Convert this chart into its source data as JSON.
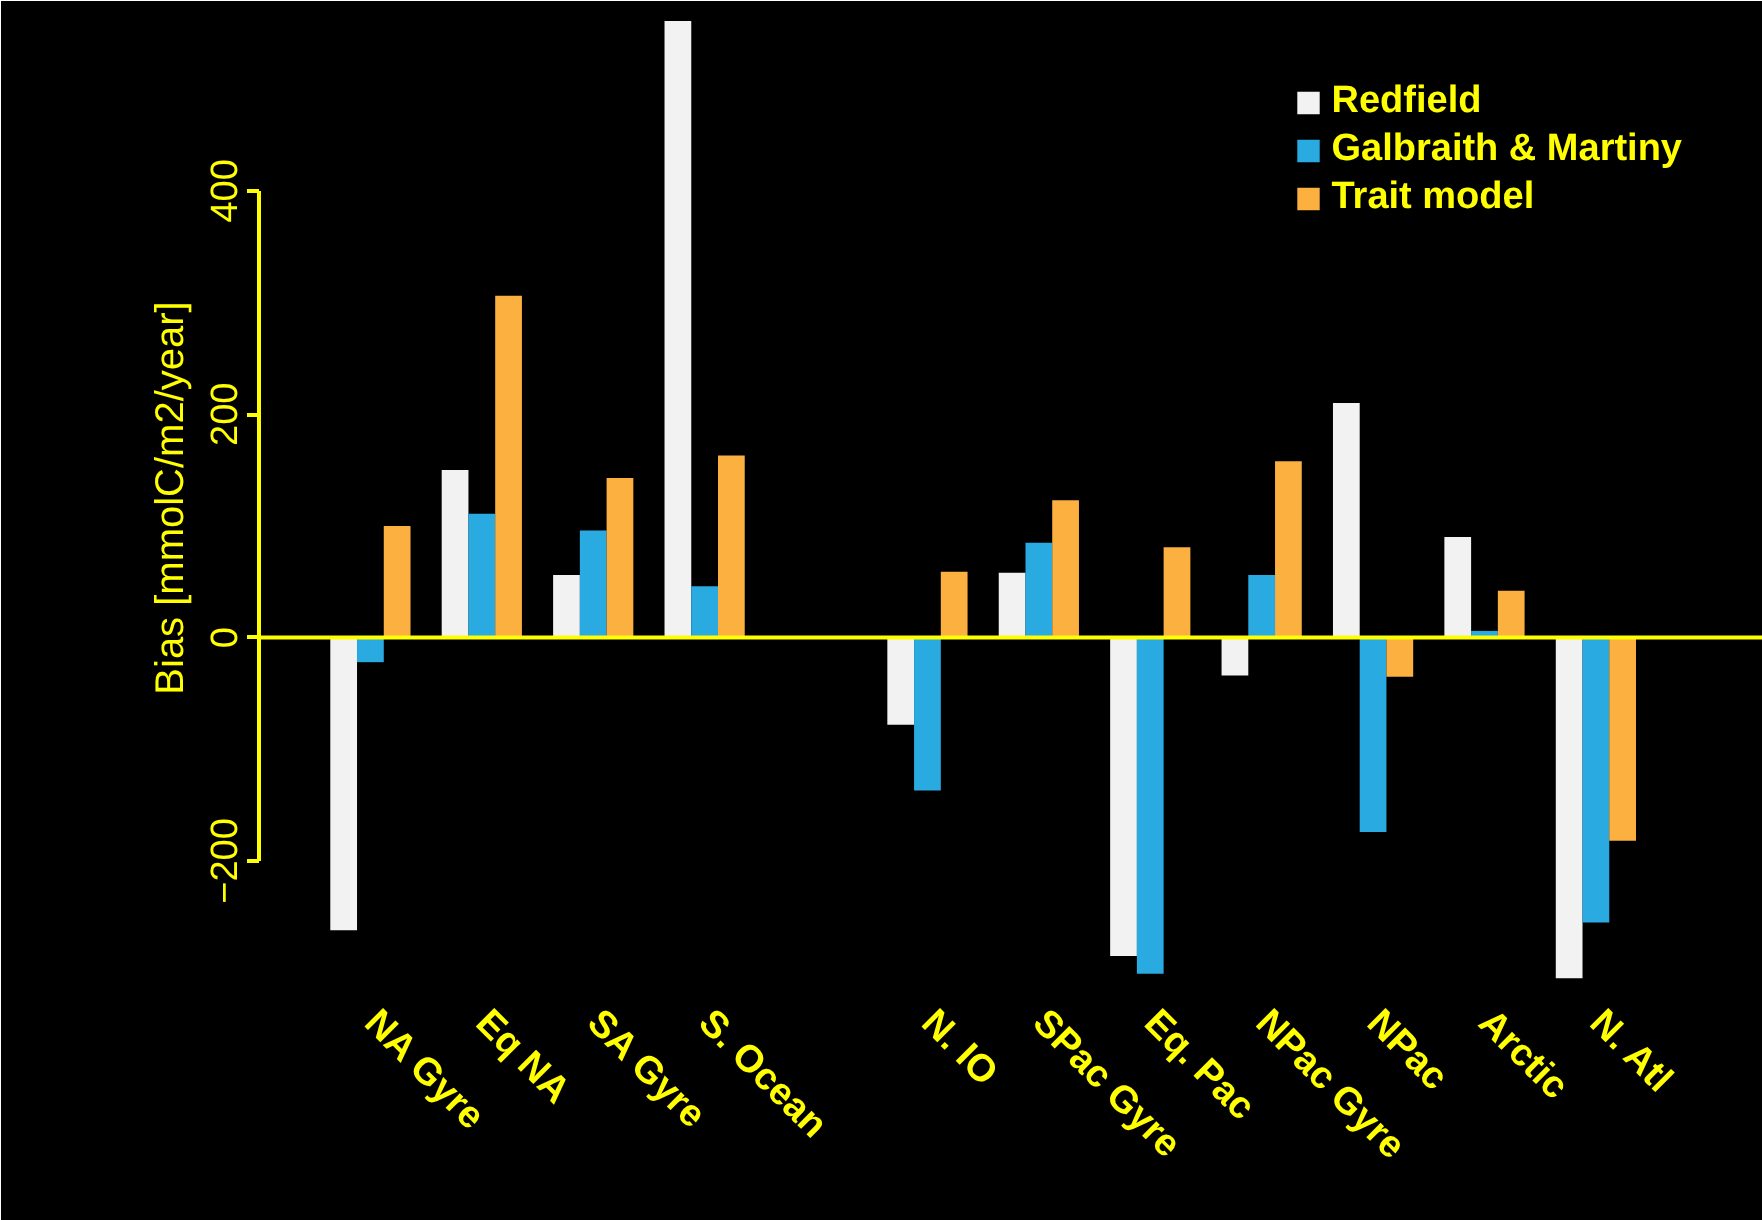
{
  "chart_data": {
    "type": "bar",
    "ylabel": "Bias [mmolC/m2/year]",
    "categories": [
      "NA Gyre",
      "Eq NA",
      "SA Gyre",
      "S. Ocean",
      null,
      "N. IO",
      "SPac Gyre",
      "Eq. Pac",
      "NPac Gyre",
      "NPac",
      "Arctic",
      "N. Atl"
    ],
    "series": [
      {
        "name": "Redfield",
        "color": "#f2f2f2",
        "values": [
          -262,
          150,
          56,
          552,
          null,
          -78,
          58,
          -285,
          -34,
          210,
          90,
          -305
        ]
      },
      {
        "name": "Galbraith & Martiny",
        "color": "#29abe2",
        "values": [
          -22,
          111,
          96,
          46,
          null,
          -137,
          85,
          -301,
          56,
          -174,
          6,
          -255
        ]
      },
      {
        "name": "Trait model",
        "color": "#fbb040",
        "values": [
          100,
          306,
          143,
          163,
          null,
          59,
          123,
          81,
          158,
          -35,
          42,
          -182
        ]
      }
    ],
    "ylim": [
      -320,
      570
    ],
    "yticks": [
      -200,
      0,
      200,
      400
    ],
    "ref_lines": [
      {
        "axis": "y",
        "value": 0,
        "color": "#ffff00"
      }
    ],
    "grid": false,
    "legend": "top right"
  }
}
